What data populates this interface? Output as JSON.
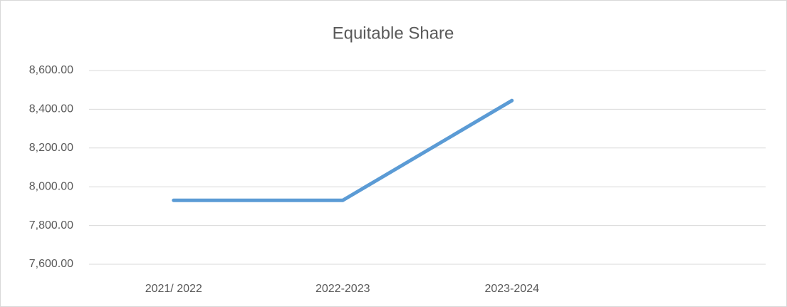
{
  "chart_data": {
    "type": "line",
    "title": "Equitable Share",
    "categories": [
      "2021/ 2022",
      "2022-2023",
      "2023-2024",
      null
    ],
    "series": [
      {
        "name": "Equitable Share",
        "color": "#5b9bd5",
        "values": [
          7930,
          7930,
          8445,
          null
        ]
      }
    ],
    "ylim": [
      7600,
      8600
    ],
    "yticks": [
      {
        "value": 7600,
        "label": "7,600.00"
      },
      {
        "value": 7800,
        "label": "7,800.00"
      },
      {
        "value": 8000,
        "label": "8,000.00"
      },
      {
        "value": 8200,
        "label": "8,200.00"
      },
      {
        "value": 8400,
        "label": "8,400.00"
      },
      {
        "value": 8600,
        "label": "8,600.00"
      }
    ],
    "grid": true
  }
}
